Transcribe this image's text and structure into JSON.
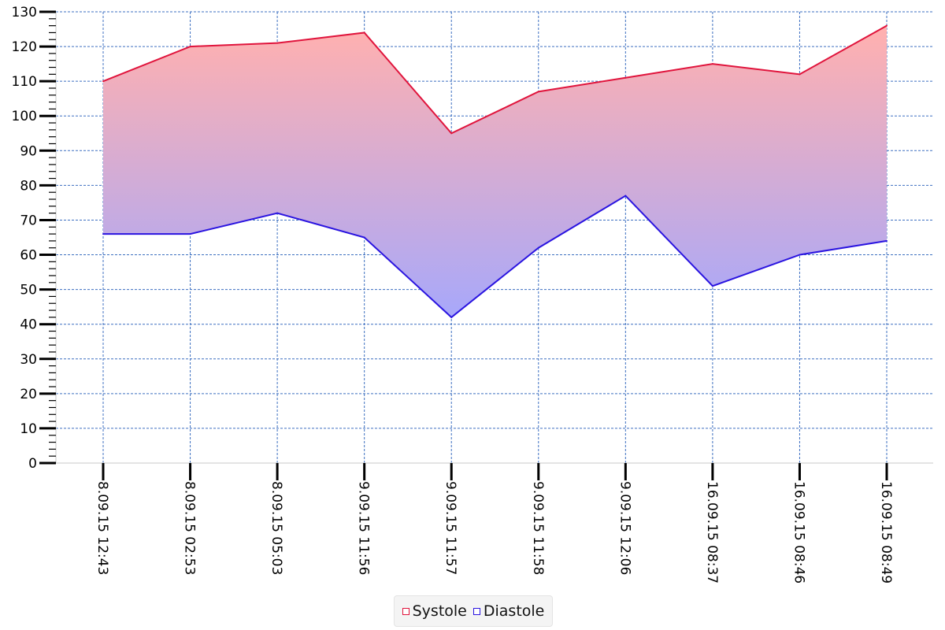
{
  "chart_data": {
    "type": "area",
    "title": "",
    "xlabel": "",
    "ylabel": "",
    "ylim": [
      0,
      130
    ],
    "y_major_step": 10,
    "y_minor_step": 2,
    "y_ticks": [
      "0",
      "10",
      "20",
      "30",
      "40",
      "50",
      "60",
      "70",
      "80",
      "90",
      "100",
      "110",
      "120",
      "130"
    ],
    "grid": true,
    "legend_position": "bottom-center",
    "categories": [
      "8.09.15 12:43",
      "8.09.15 02:53",
      "8.09.15 05:03",
      "9.09.15 11:56",
      "9.09.15 11:57",
      "9.09.15 11:58",
      "9.09.15 12:06",
      "16.09.15 08:37",
      "16.09.15 08:46",
      "16.09.15 08:49"
    ],
    "series": [
      {
        "name": "Systole",
        "color": "#e0143c",
        "values": [
          110,
          120,
          121,
          124,
          95,
          107,
          111,
          115,
          112,
          126
        ]
      },
      {
        "name": "Diastole",
        "color": "#2a14e0",
        "values": [
          66,
          66,
          72,
          65,
          42,
          62,
          77,
          51,
          60,
          64
        ]
      }
    ],
    "fill_colors": {
      "top": "#ffb0b0",
      "bottom": "#a8a8fa"
    },
    "grid_color": "#3c6fc0"
  }
}
